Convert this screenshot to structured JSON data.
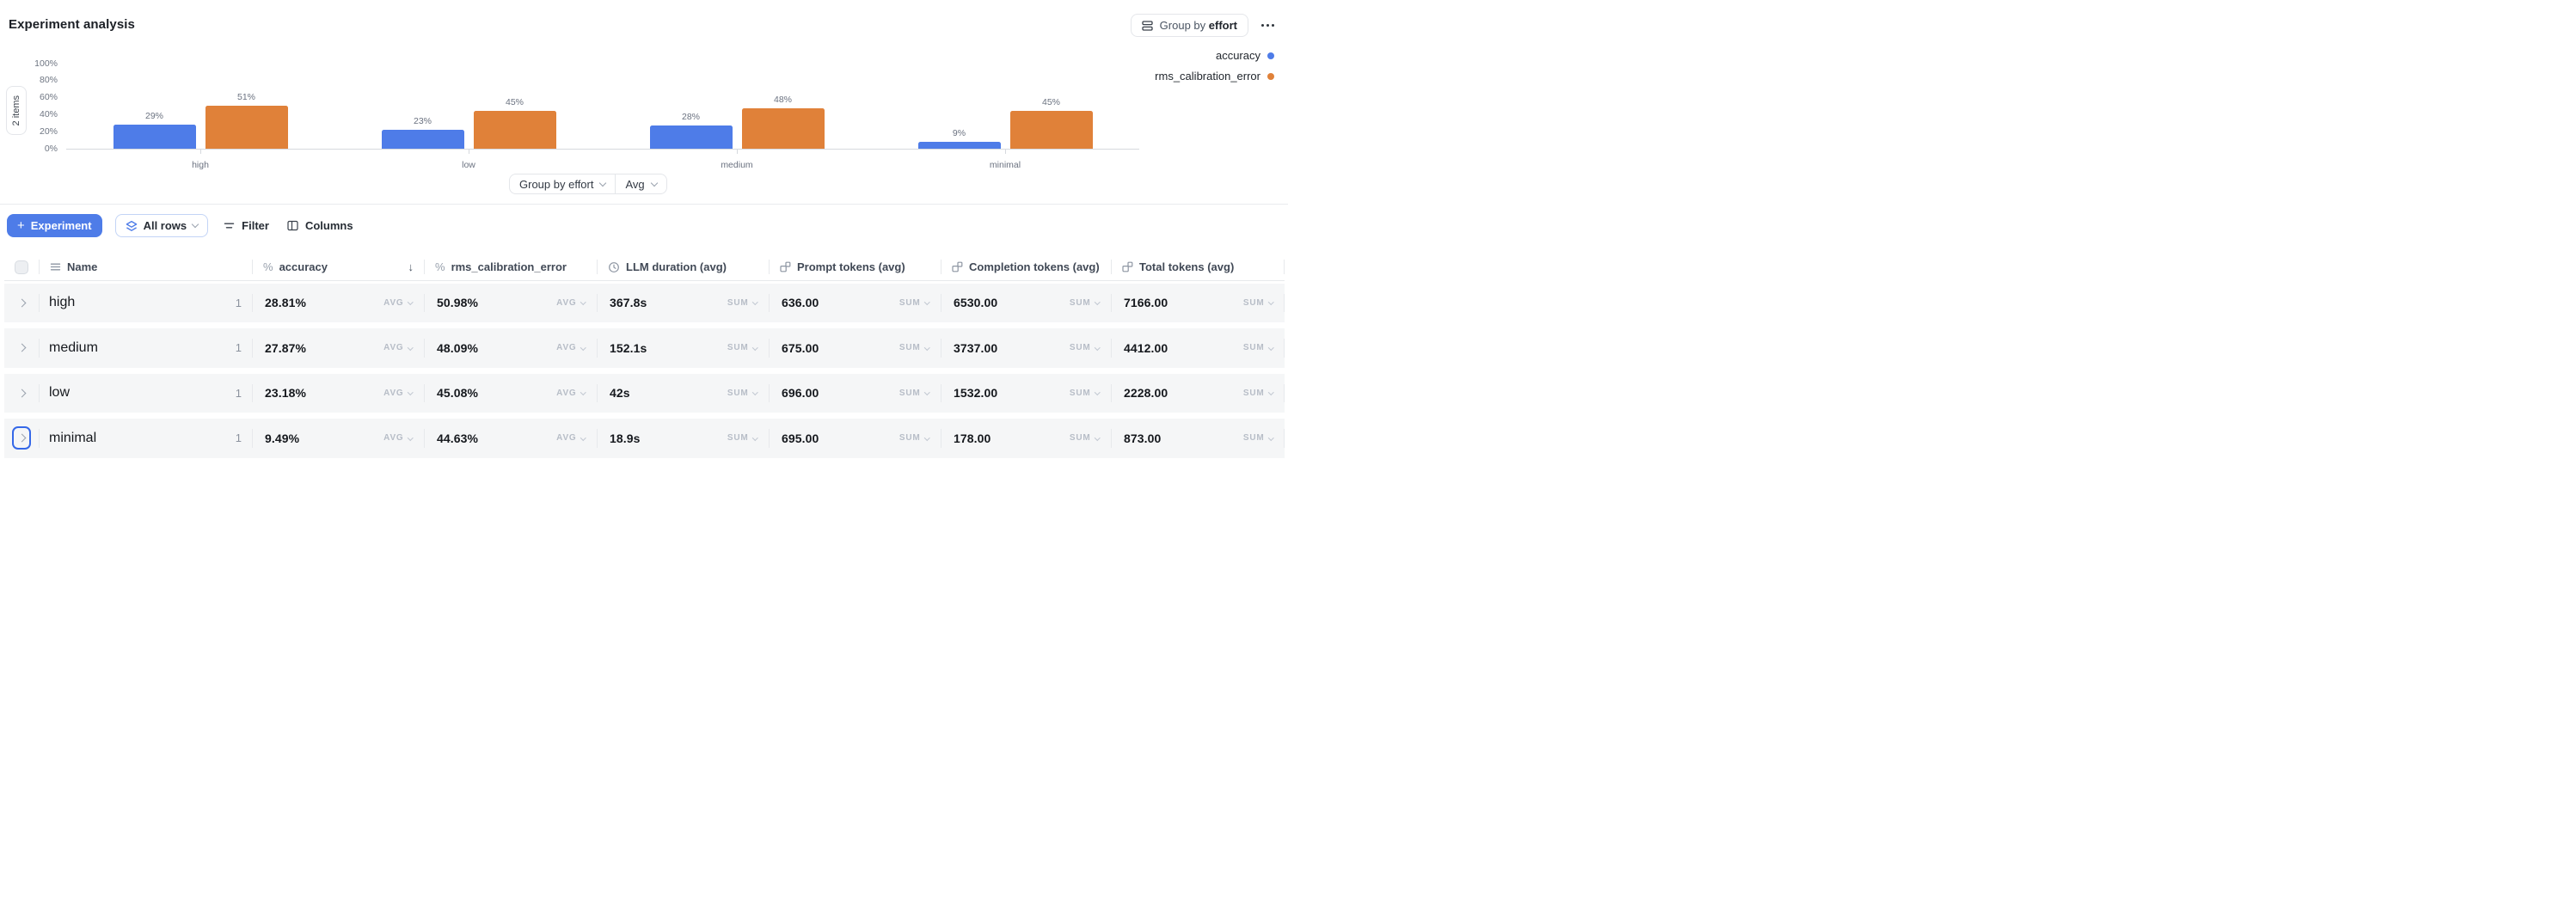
{
  "app": {
    "title": "Experiment analysis"
  },
  "topbar": {
    "group_button": {
      "prefix": "Group by",
      "field": "effort"
    }
  },
  "legend": {
    "items": [
      {
        "label": "accuracy",
        "color": "#4e7ce8"
      },
      {
        "label": "rms_calibration_error",
        "color": "#e08139"
      }
    ]
  },
  "chart_badge": "2 items",
  "chart_data": {
    "type": "bar",
    "categories": [
      "high",
      "low",
      "medium",
      "minimal"
    ],
    "series": [
      {
        "name": "accuracy",
        "color": "#4e7ce8",
        "values": [
          29,
          23,
          28,
          9
        ]
      },
      {
        "name": "rms_calibration_error",
        "color": "#e08139",
        "values": [
          51,
          45,
          48,
          45
        ]
      }
    ],
    "value_suffix": "%",
    "y_ticks": [
      {
        "label": "100%",
        "value": 100
      },
      {
        "label": "80%",
        "value": 80
      },
      {
        "label": "60%",
        "value": 60
      },
      {
        "label": "40%",
        "value": 40
      },
      {
        "label": "20%",
        "value": 20
      },
      {
        "label": "0%",
        "value": 0
      }
    ],
    "ylim": [
      0,
      100
    ],
    "grid": false,
    "legend_position": "top-right"
  },
  "chart_controls": {
    "group_by_label": "Group by effort",
    "agg_label": "Avg"
  },
  "toolbar": {
    "experiment_button": {
      "plus": "+",
      "label": "Experiment"
    },
    "rows_button": {
      "label": "All rows"
    },
    "filter_button": {
      "label": "Filter"
    },
    "columns_button": {
      "label": "Columns"
    }
  },
  "table": {
    "sort_glyph": "↓",
    "columns": [
      {
        "id": "name",
        "label": "Name",
        "icon": "menu-icon"
      },
      {
        "id": "accuracy",
        "label": "accuracy",
        "icon": "percent-icon",
        "sorted": "desc"
      },
      {
        "id": "rms_calibration_error",
        "label": "rms_calibration_error",
        "icon": "percent-icon"
      },
      {
        "id": "llm_duration",
        "label": "LLM duration (avg)",
        "icon": "clock-icon"
      },
      {
        "id": "prompt_tokens",
        "label": "Prompt tokens (avg)",
        "icon": "tokens-icon"
      },
      {
        "id": "completion_tokens",
        "label": "Completion tokens (avg)",
        "icon": "tokens-icon"
      },
      {
        "id": "total_tokens",
        "label": "Total tokens (avg)",
        "icon": "tokens-icon"
      }
    ],
    "rows": [
      {
        "name": "high",
        "count": "1",
        "focused": false,
        "cells": [
          {
            "value": "28.81%",
            "agg": "AVG"
          },
          {
            "value": "50.98%",
            "agg": "AVG"
          },
          {
            "value": "367.8s",
            "agg": "SUM"
          },
          {
            "value": "636.00",
            "agg": "SUM"
          },
          {
            "value": "6530.00",
            "agg": "SUM"
          },
          {
            "value": "7166.00",
            "agg": "SUM"
          }
        ]
      },
      {
        "name": "medium",
        "count": "1",
        "focused": false,
        "cells": [
          {
            "value": "27.87%",
            "agg": "AVG"
          },
          {
            "value": "48.09%",
            "agg": "AVG"
          },
          {
            "value": "152.1s",
            "agg": "SUM"
          },
          {
            "value": "675.00",
            "agg": "SUM"
          },
          {
            "value": "3737.00",
            "agg": "SUM"
          },
          {
            "value": "4412.00",
            "agg": "SUM"
          }
        ]
      },
      {
        "name": "low",
        "count": "1",
        "focused": false,
        "cells": [
          {
            "value": "23.18%",
            "agg": "AVG"
          },
          {
            "value": "45.08%",
            "agg": "AVG"
          },
          {
            "value": "42s",
            "agg": "SUM"
          },
          {
            "value": "696.00",
            "agg": "SUM"
          },
          {
            "value": "1532.00",
            "agg": "SUM"
          },
          {
            "value": "2228.00",
            "agg": "SUM"
          }
        ]
      },
      {
        "name": "minimal",
        "count": "1",
        "focused": true,
        "cells": [
          {
            "value": "9.49%",
            "agg": "AVG"
          },
          {
            "value": "44.63%",
            "agg": "AVG"
          },
          {
            "value": "18.9s",
            "agg": "SUM"
          },
          {
            "value": "695.00",
            "agg": "SUM"
          },
          {
            "value": "178.00",
            "agg": "SUM"
          },
          {
            "value": "873.00",
            "agg": "SUM"
          }
        ]
      }
    ]
  }
}
